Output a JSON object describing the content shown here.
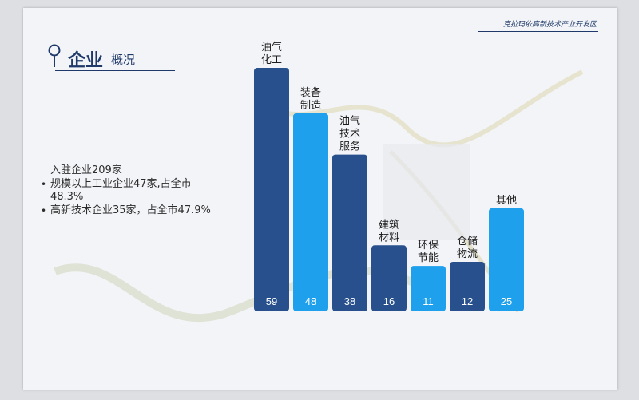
{
  "header": {
    "org_name": "克拉玛依高新技术产业开发区"
  },
  "title": {
    "main": "企业",
    "sub": "概况"
  },
  "info": {
    "line0": "入驻企业209家",
    "bullets": [
      "规模以上工业企业47家,占全市48.3%",
      "高新技术企业35家，占全市47.9%"
    ],
    "bullet_symbol": "•"
  },
  "chart_data": {
    "type": "bar",
    "title": "",
    "xlabel": "",
    "ylabel": "",
    "ylim": [
      0,
      65
    ],
    "categories": [
      [
        "油气",
        "化工"
      ],
      [
        "装备",
        "制造"
      ],
      [
        "油气",
        "技术",
        "服务"
      ],
      [
        "建筑",
        "材料"
      ],
      [
        "环保",
        "节能"
      ],
      [
        "仓储",
        "物流"
      ],
      [
        "其他"
      ]
    ],
    "values": [
      59,
      48,
      38,
      16,
      11,
      12,
      25
    ],
    "colors": [
      "#27508c",
      "#1fa0ec",
      "#27508c",
      "#27508c",
      "#1fa0ec",
      "#27508c",
      "#1fa0ec"
    ]
  }
}
